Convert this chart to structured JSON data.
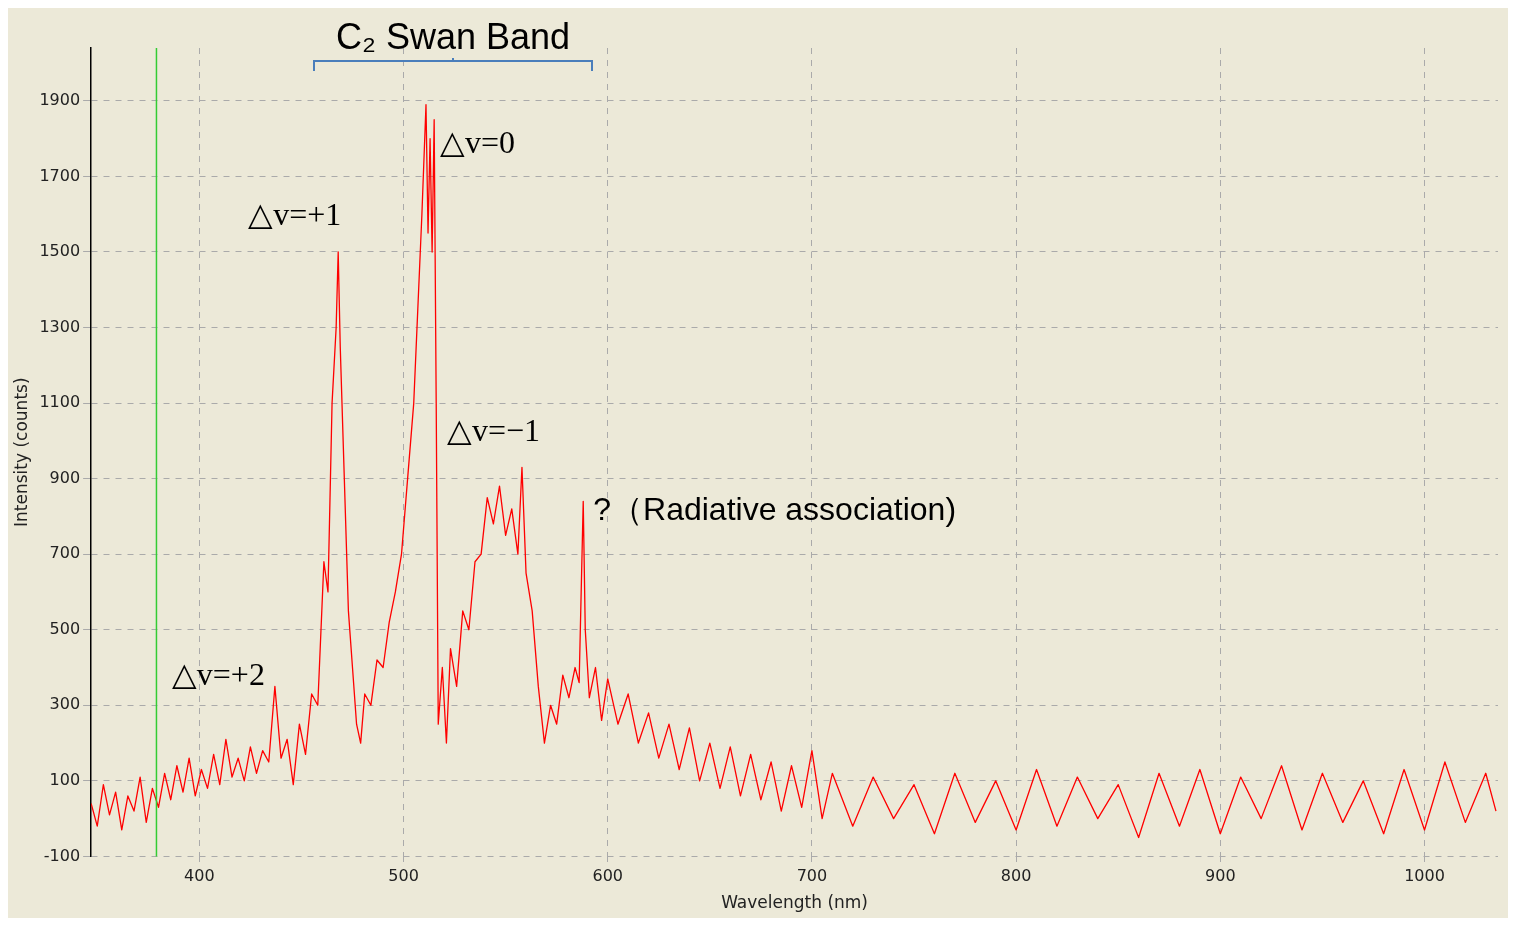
{
  "chart_data": {
    "type": "line",
    "xlabel": "Wavelength (nm)",
    "ylabel": "Intensity (counts)",
    "x": [
      347,
      350,
      353,
      356,
      359,
      362,
      365,
      368,
      371,
      374,
      377,
      380,
      383,
      386,
      389,
      392,
      395,
      398,
      401,
      404,
      407,
      410,
      413,
      416,
      419,
      422,
      425,
      428,
      431,
      434,
      437,
      440,
      443,
      446,
      449,
      452,
      455,
      458,
      461,
      463,
      465,
      467,
      468,
      469,
      471,
      473,
      475,
      477,
      479,
      481,
      484,
      487,
      490,
      493,
      496,
      499,
      502,
      505,
      507,
      509,
      511,
      512,
      513,
      514,
      515,
      516,
      517,
      519,
      521,
      523,
      526,
      529,
      532,
      535,
      538,
      541,
      544,
      547,
      550,
      553,
      556,
      558,
      560,
      563,
      566,
      569,
      572,
      575,
      578,
      581,
      584,
      586,
      588,
      589,
      591,
      594,
      597,
      600,
      605,
      610,
      615,
      620,
      625,
      630,
      635,
      640,
      645,
      650,
      655,
      660,
      665,
      670,
      675,
      680,
      685,
      690,
      695,
      700,
      705,
      710,
      720,
      730,
      740,
      750,
      760,
      770,
      780,
      790,
      800,
      810,
      820,
      830,
      840,
      850,
      860,
      870,
      880,
      890,
      900,
      910,
      920,
      930,
      940,
      950,
      960,
      970,
      980,
      990,
      1000,
      1010,
      1020,
      1030,
      1035
    ],
    "series": [
      {
        "color": "#ff0000",
        "values": [
          40,
          -20,
          90,
          10,
          70,
          -30,
          60,
          20,
          110,
          -10,
          80,
          30,
          120,
          50,
          140,
          70,
          160,
          60,
          130,
          80,
          170,
          90,
          210,
          110,
          160,
          100,
          190,
          120,
          180,
          150,
          350,
          160,
          210,
          90,
          250,
          170,
          330,
          300,
          680,
          600,
          1100,
          1300,
          1500,
          1250,
          900,
          550,
          400,
          250,
          200,
          330,
          300,
          420,
          400,
          520,
          600,
          700,
          900,
          1100,
          1350,
          1600,
          1890,
          1550,
          1800,
          1500,
          1850,
          1100,
          250,
          400,
          200,
          450,
          350,
          550,
          500,
          680,
          700,
          850,
          780,
          880,
          750,
          820,
          700,
          930,
          650,
          550,
          350,
          200,
          300,
          250,
          380,
          320,
          400,
          360,
          840,
          500,
          320,
          400,
          260,
          370,
          250,
          330,
          200,
          280,
          160,
          250,
          130,
          240,
          100,
          200,
          80,
          190,
          60,
          170,
          50,
          150,
          20,
          140,
          30,
          180,
          0,
          120,
          -20,
          110,
          0,
          90,
          -40,
          120,
          -10,
          100,
          -30,
          130,
          -20,
          110,
          0,
          90,
          -50,
          120,
          -20,
          130,
          -40,
          110,
          0,
          140,
          -30,
          120,
          -10,
          100,
          -40,
          130,
          -30,
          150,
          -10,
          120,
          20
        ]
      }
    ],
    "xlim": [
      347,
      1036
    ],
    "xticks": [
      400,
      500,
      600,
      700,
      800,
      900,
      1000
    ],
    "ylim": [
      -100,
      2040
    ],
    "yticks": [
      -100,
      100,
      300,
      500,
      700,
      900,
      1100,
      1300,
      1500,
      1700,
      1900
    ],
    "grid": true,
    "legend": false,
    "marker": "none",
    "line_style": "solid",
    "ref_lines": [
      {
        "axis": "x",
        "value": 379,
        "color": "#33cc33"
      }
    ],
    "annotations": [
      "C₂ Swan Band",
      {
        "text": "△v=+2",
        "x": 437,
        "y": 350
      },
      {
        "text": "△v=+1",
        "x": 468,
        "y": 1500
      },
      {
        "text": "△v=0",
        "x": 512,
        "y": 1890
      },
      {
        "text": "△v=−1",
        "x": 558,
        "y": 930
      },
      {
        "text": "?（Radiative association)",
        "x": 588,
        "y": 840
      }
    ]
  }
}
